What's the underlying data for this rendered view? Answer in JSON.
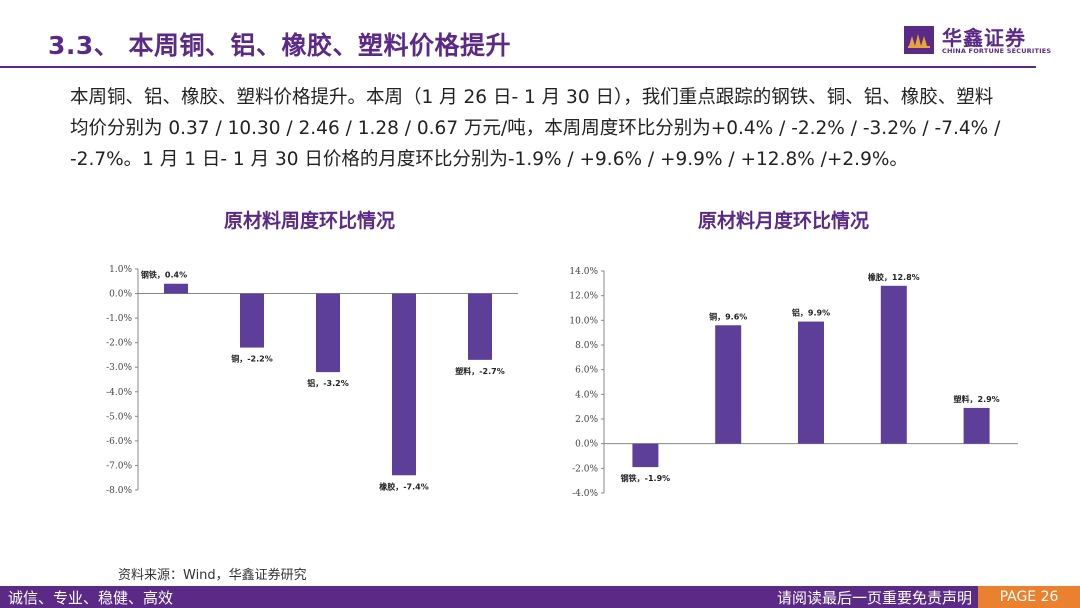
{
  "header": {
    "title": "3.3、 本周铜、铝、橡胶、塑料价格提升",
    "logo_cn": "华鑫证券",
    "logo_en": "CHINA FORTUNE SECURITIES"
  },
  "body": {
    "paragraph": "本周铜、铝、橡胶、塑料价格提升。本周（1 月 26 日- 1 月 30 日），我们重点跟踪的钢铁、铜、铝、橡胶、塑料均价分别为 0.37 / 10.30 / 2.46 / 1.28 / 0.67 万元/吨，本周周度环比分别为+0.4% / -2.2% / -3.2% / -7.4% / -2.7%。1 月 1 日- 1 月 30 日价格的月度环比分别为-1.9% / +9.6% / +9.9% / +12.8% /+2.9%。"
  },
  "chart_data": [
    {
      "type": "bar",
      "title": "原材料周度环比情况",
      "categories": [
        "钢铁",
        "铜",
        "铝",
        "橡胶",
        "塑料"
      ],
      "values": [
        0.4,
        -2.2,
        -3.2,
        -7.4,
        -2.7
      ],
      "data_labels": [
        "钢铁，0.4%",
        "铜，-2.2%",
        "铝，-3.2%",
        "橡胶，-7.4%",
        "塑料，-2.7%"
      ],
      "ylim": [
        -8.0,
        1.0
      ],
      "yticks": [
        "1.0%",
        "0.0%",
        "-1.0%",
        "-2.0%",
        "-3.0%",
        "-4.0%",
        "-5.0%",
        "-6.0%",
        "-7.0%",
        "-8.0%"
      ],
      "ytick_values": [
        1,
        0,
        -1,
        -2,
        -3,
        -4,
        -5,
        -6,
        -7,
        -8
      ],
      "xlabel": "",
      "ylabel": "",
      "color": "#5d3f9a"
    },
    {
      "type": "bar",
      "title": "原材料月度环比情况",
      "categories": [
        "钢铁",
        "铜",
        "铝",
        "橡胶",
        "塑料"
      ],
      "values": [
        -1.9,
        9.6,
        9.9,
        12.8,
        2.9
      ],
      "data_labels": [
        "钢铁，-1.9%",
        "铜，9.6%",
        "铝，9.9%",
        "橡胶，12.8%",
        "塑料，2.9%"
      ],
      "ylim": [
        -4.0,
        14.0
      ],
      "yticks": [
        "14.0%",
        "12.0%",
        "10.0%",
        "8.0%",
        "6.0%",
        "4.0%",
        "2.0%",
        "0.0%",
        "-2.0%",
        "-4.0%"
      ],
      "ytick_values": [
        14,
        12,
        10,
        8,
        6,
        4,
        2,
        0,
        -2,
        -4
      ],
      "xlabel": "",
      "ylabel": "",
      "color": "#5d3f9a"
    }
  ],
  "source": "资料来源：Wind，华鑫证券研究",
  "footer": {
    "left": "诚信、专业、稳健、高效",
    "right": "请阅读最后一页重要免责声明",
    "page": "PAGE 26"
  }
}
